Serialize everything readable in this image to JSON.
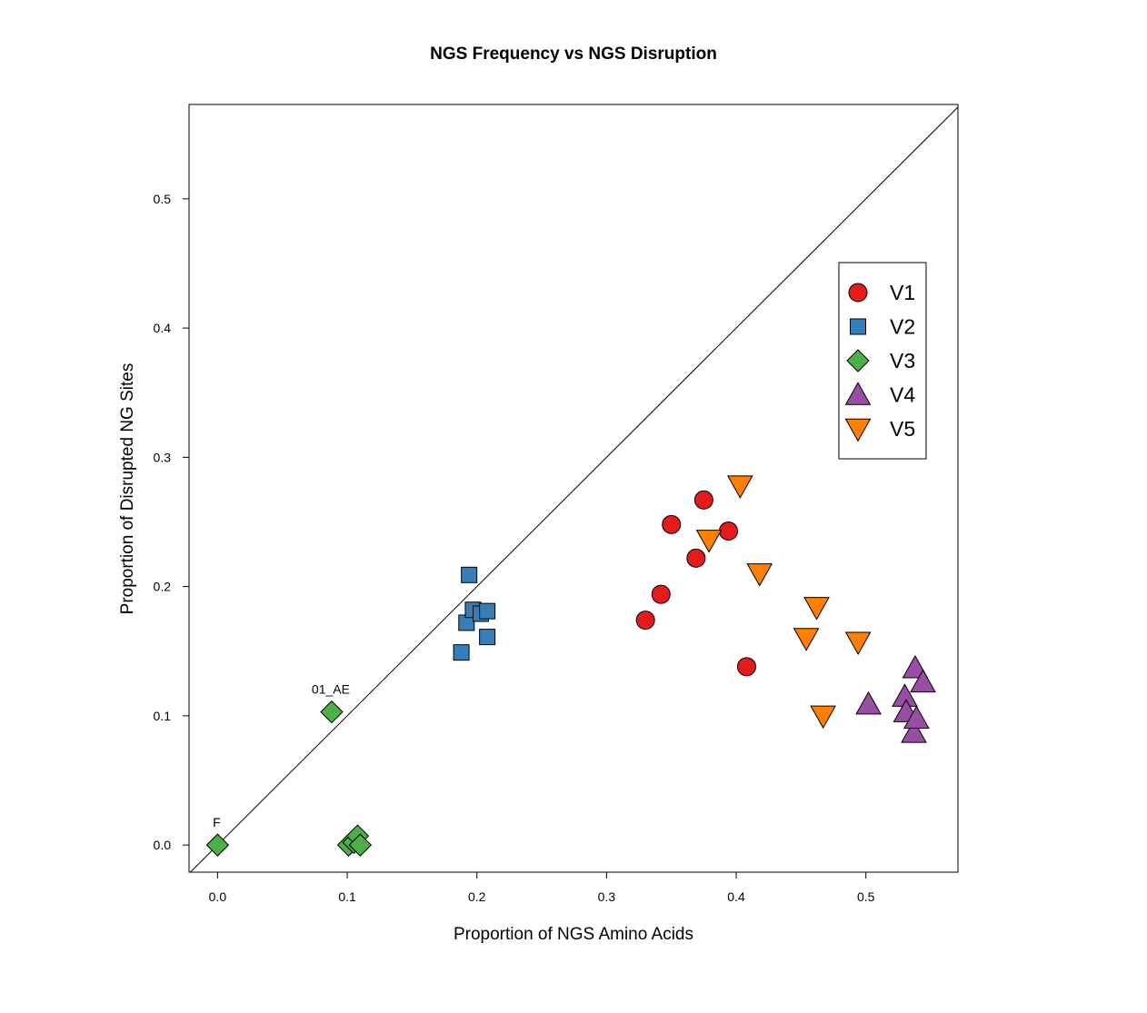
{
  "chart_data": {
    "type": "scatter",
    "title": "NGS Frequency vs NGS Disruption",
    "xlabel": "Proportion of NGS Amino Acids",
    "ylabel": "Proportion of Disrupted NG Sites",
    "xlim": [
      -0.022,
      0.571
    ],
    "ylim": [
      -0.021,
      0.573
    ],
    "xticks": [
      0.0,
      0.1,
      0.2,
      0.3,
      0.4,
      0.5
    ],
    "xtick_labels": [
      "0.0",
      "0.1",
      "0.2",
      "0.3",
      "0.4",
      "0.5"
    ],
    "yticks": [
      0.0,
      0.1,
      0.2,
      0.3,
      0.4,
      0.5
    ],
    "ytick_labels": [
      "0.0",
      "0.1",
      "0.2",
      "0.3",
      "0.4",
      "0.5"
    ],
    "grid": false,
    "reference_line": "y = x",
    "legend_position": "right",
    "series": [
      {
        "name": "V1",
        "shape": "circle",
        "color": "#e41a1c",
        "points": [
          {
            "x": 0.33,
            "y": 0.174
          },
          {
            "x": 0.342,
            "y": 0.194
          },
          {
            "x": 0.35,
            "y": 0.248
          },
          {
            "x": 0.369,
            "y": 0.222
          },
          {
            "x": 0.375,
            "y": 0.267
          },
          {
            "x": 0.394,
            "y": 0.243
          },
          {
            "x": 0.408,
            "y": 0.138
          }
        ]
      },
      {
        "name": "V2",
        "shape": "square",
        "color": "#377eb8",
        "points": [
          {
            "x": 0.188,
            "y": 0.149
          },
          {
            "x": 0.192,
            "y": 0.172
          },
          {
            "x": 0.194,
            "y": 0.209
          },
          {
            "x": 0.197,
            "y": 0.182
          },
          {
            "x": 0.203,
            "y": 0.179
          },
          {
            "x": 0.208,
            "y": 0.181
          },
          {
            "x": 0.208,
            "y": 0.161
          }
        ]
      },
      {
        "name": "V3",
        "shape": "diamond",
        "color": "#4daf4a",
        "points": [
          {
            "x": 0.0,
            "y": 0.0,
            "label": "F"
          },
          {
            "x": 0.088,
            "y": 0.103,
            "label": "01_AE"
          },
          {
            "x": 0.101,
            "y": 0.0
          },
          {
            "x": 0.105,
            "y": 0.002
          },
          {
            "x": 0.108,
            "y": 0.007
          },
          {
            "x": 0.11,
            "y": 0.0
          }
        ]
      },
      {
        "name": "V4",
        "shape": "triangle-up",
        "color": "#984ea3",
        "points": [
          {
            "x": 0.502,
            "y": 0.109
          },
          {
            "x": 0.53,
            "y": 0.115
          },
          {
            "x": 0.531,
            "y": 0.103
          },
          {
            "x": 0.537,
            "y": 0.087
          },
          {
            "x": 0.538,
            "y": 0.137
          },
          {
            "x": 0.539,
            "y": 0.098
          },
          {
            "x": 0.544,
            "y": 0.126
          }
        ]
      },
      {
        "name": "V5",
        "shape": "triangle-down",
        "color": "#ff7f00",
        "points": [
          {
            "x": 0.379,
            "y": 0.236
          },
          {
            "x": 0.403,
            "y": 0.278
          },
          {
            "x": 0.418,
            "y": 0.21
          },
          {
            "x": 0.454,
            "y": 0.16
          },
          {
            "x": 0.462,
            "y": 0.184
          },
          {
            "x": 0.467,
            "y": 0.1
          },
          {
            "x": 0.494,
            "y": 0.157
          }
        ]
      }
    ]
  }
}
